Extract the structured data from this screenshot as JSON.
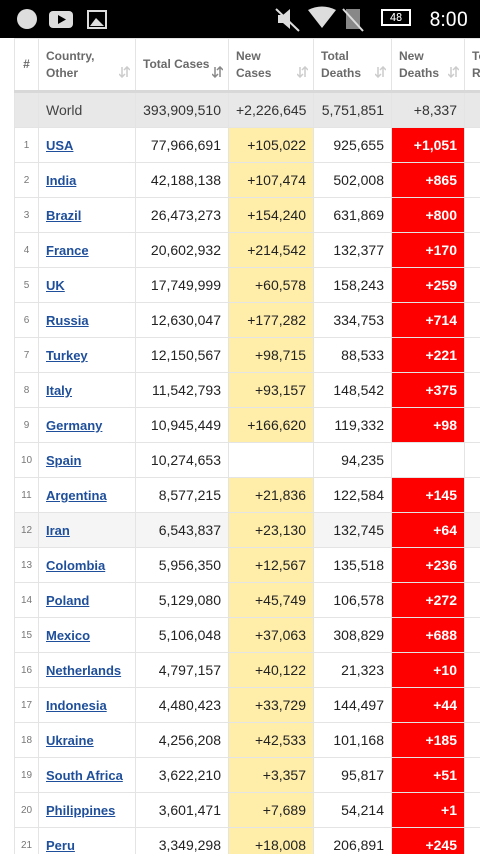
{
  "status_bar": {
    "battery": "48",
    "time": "8:00"
  },
  "table": {
    "headers": [
      "#",
      "Country, Other",
      "Total Cases",
      "New Cases",
      "Total Deaths",
      "New Deaths",
      "Total Recovered"
    ],
    "world": [
      "World",
      "393,909,510",
      "+2,226,645",
      "5,751,851",
      "+8,337"
    ],
    "rows": [
      [
        "1",
        "USA",
        "77,966,691",
        "+105,022",
        "925,655",
        "+1,051"
      ],
      [
        "2",
        "India",
        "42,188,138",
        "+107,474",
        "502,008",
        "+865"
      ],
      [
        "3",
        "Brazil",
        "26,473,273",
        "+154,240",
        "631,869",
        "+800"
      ],
      [
        "4",
        "France",
        "20,602,932",
        "+214,542",
        "132,377",
        "+170"
      ],
      [
        "5",
        "UK",
        "17,749,999",
        "+60,578",
        "158,243",
        "+259"
      ],
      [
        "6",
        "Russia",
        "12,630,047",
        "+177,282",
        "334,753",
        "+714"
      ],
      [
        "7",
        "Turkey",
        "12,150,567",
        "+98,715",
        "88,533",
        "+221"
      ],
      [
        "8",
        "Italy",
        "11,542,793",
        "+93,157",
        "148,542",
        "+375"
      ],
      [
        "9",
        "Germany",
        "10,945,449",
        "+166,620",
        "119,332",
        "+98"
      ],
      [
        "10",
        "Spain",
        "10,274,653",
        null,
        "94,235",
        null
      ],
      [
        "11",
        "Argentina",
        "8,577,215",
        "+21,836",
        "122,584",
        "+145"
      ],
      [
        "12",
        "Iran",
        "6,543,837",
        "+23,130",
        "132,745",
        "+64"
      ],
      [
        "13",
        "Colombia",
        "5,956,350",
        "+12,567",
        "135,518",
        "+236"
      ],
      [
        "14",
        "Poland",
        "5,129,080",
        "+45,749",
        "106,578",
        "+272"
      ],
      [
        "15",
        "Mexico",
        "5,106,048",
        "+37,063",
        "308,829",
        "+688"
      ],
      [
        "16",
        "Netherlands",
        "4,797,157",
        "+40,122",
        "21,323",
        "+10"
      ],
      [
        "17",
        "Indonesia",
        "4,480,423",
        "+33,729",
        "144,497",
        "+44"
      ],
      [
        "18",
        "Ukraine",
        "4,256,208",
        "+42,533",
        "101,168",
        "+185"
      ],
      [
        "19",
        "South Africa",
        "3,622,210",
        "+3,357",
        "95,817",
        "+51"
      ],
      [
        "20",
        "Philippines",
        "3,601,471",
        "+7,689",
        "54,214",
        "+1"
      ],
      [
        "21",
        "Peru",
        "3,349,298",
        "+18,008",
        "206,891",
        "+245"
      ]
    ]
  }
}
